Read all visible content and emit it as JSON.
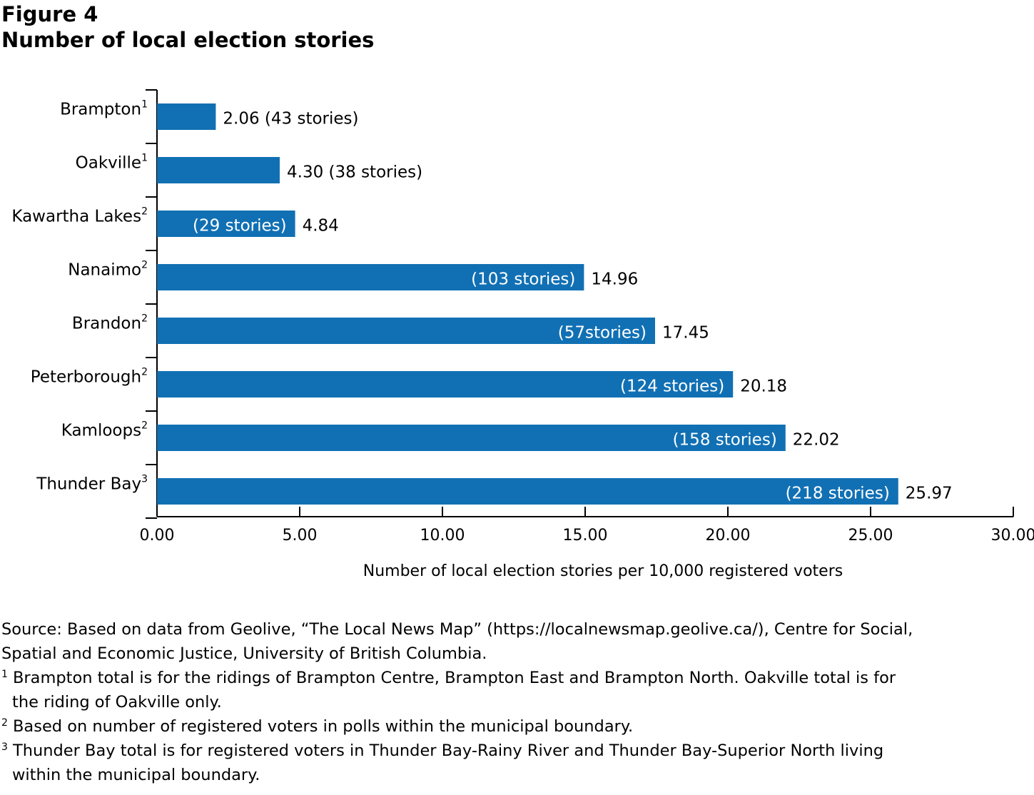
{
  "figure": {
    "label": "Figure 4",
    "title": "Number of local election stories"
  },
  "chart_data": {
    "type": "bar",
    "orientation": "horizontal",
    "title": "Number of local election stories",
    "xlabel": "Number of local election stories per 10,000 registered voters",
    "ylabel": "",
    "xlim": [
      0,
      30
    ],
    "x_ticks": [
      "0.00",
      "5.00",
      "10.00",
      "15.00",
      "20.00",
      "25.00",
      "30.00"
    ],
    "grid": false,
    "bar_color": "#1170b4",
    "categories": [
      "Brampton",
      "Oakville",
      "Kawartha Lakes",
      "Nanaimo",
      "Brandon",
      "Peterborough",
      "Kamloops",
      "Thunder Bay"
    ],
    "category_footnotes": [
      "1",
      "1",
      "2",
      "2",
      "2",
      "2",
      "2",
      "3"
    ],
    "values": [
      2.06,
      4.3,
      4.84,
      14.96,
      17.45,
      20.18,
      22.02,
      25.97
    ],
    "value_labels": [
      "2.06",
      "4.30",
      "4.84",
      "14.96",
      "17.45",
      "20.18",
      "22.02",
      "25.97"
    ],
    "story_labels": [
      "(43 stories)",
      "(38 stories)",
      "(29 stories)",
      "(103 stories)",
      "(57stories)",
      "(124 stories)",
      "(158 stories)",
      "(218 stories)"
    ]
  },
  "notes": {
    "source_1": "Source: Based on data from Geolive, “The Local News Map” (https://localnewsmap.geolive.ca/), Centre for Social,",
    "source_2": "Spatial and Economic Justice, University of British Columbia.",
    "fn1_mark": "1",
    "fn1_1": "Brampton total is for the ridings of Brampton Centre, Brampton East and Brampton North. Oakville total is for",
    "fn1_2": "the riding of Oakville only.",
    "fn2_mark": "2",
    "fn2_1": "Based on number of registered voters in polls within the municipal boundary.",
    "fn3_mark": "3",
    "fn3_1": "Thunder Bay total  is for registered voters in Thunder Bay-Rainy River and Thunder Bay-Superior North living",
    "fn3_2": "within the municipal boundary."
  }
}
